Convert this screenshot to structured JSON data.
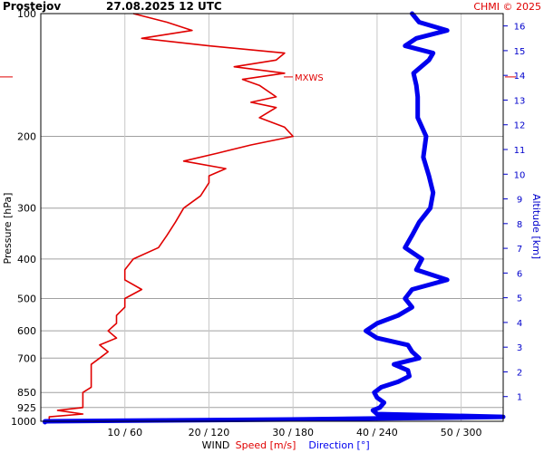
{
  "header": {
    "station": "Prostejov",
    "datetime": "27.08.2025 12 UTC",
    "copyright": "CHMI © 2025"
  },
  "colors": {
    "speed": "#e00000",
    "direction": "#0000ee",
    "grid": "#a0a0a0",
    "axis_right": "#0000cc",
    "mxws_marker": "#e00000"
  },
  "chart_data": {
    "type": "line",
    "pressure_axis": {
      "label": "Pressure [hPa]",
      "scale": "log",
      "range": [
        1000,
        100
      ],
      "ticks": [
        100,
        200,
        300,
        400,
        500,
        600,
        700,
        850,
        925,
        1000
      ]
    },
    "altitude_axis": {
      "label": "Altitude [km]",
      "range": [
        0,
        16.5
      ],
      "ticks": [
        1,
        2,
        3,
        4,
        5,
        6,
        7,
        8,
        9,
        10,
        11,
        12,
        13,
        14,
        15,
        16
      ]
    },
    "wind_axis": {
      "label": "WIND",
      "speed_label": "Speed [m/s]",
      "direction_label": "Direction [°]",
      "ticks": [
        "10 / 60",
        "20 / 120",
        "30 / 180",
        "40 / 240",
        "50 / 300"
      ],
      "speed_range": [
        0,
        55
      ],
      "direction_range": [
        0,
        330
      ]
    },
    "annotation": {
      "text": "MXWS",
      "pressure": 143
    },
    "series": [
      {
        "name": "Speed [m/s]",
        "unit": "m/s",
        "points": [
          [
            1000,
            1
          ],
          [
            975,
            1
          ],
          [
            960,
            5
          ],
          [
            940,
            2
          ],
          [
            925,
            5
          ],
          [
            900,
            5
          ],
          [
            875,
            5
          ],
          [
            850,
            5
          ],
          [
            825,
            6
          ],
          [
            800,
            6
          ],
          [
            775,
            6
          ],
          [
            750,
            6
          ],
          [
            725,
            6
          ],
          [
            700,
            7
          ],
          [
            675,
            8
          ],
          [
            650,
            7
          ],
          [
            625,
            9
          ],
          [
            600,
            8
          ],
          [
            575,
            9
          ],
          [
            550,
            9
          ],
          [
            525,
            10
          ],
          [
            500,
            10
          ],
          [
            475,
            12
          ],
          [
            450,
            10
          ],
          [
            425,
            10
          ],
          [
            400,
            11
          ],
          [
            375,
            14
          ],
          [
            350,
            15
          ],
          [
            325,
            16
          ],
          [
            300,
            17
          ],
          [
            280,
            19
          ],
          [
            260,
            20
          ],
          [
            250,
            20
          ],
          [
            240,
            22
          ],
          [
            230,
            17
          ],
          [
            220,
            21
          ],
          [
            210,
            25
          ],
          [
            200,
            30
          ],
          [
            190,
            29
          ],
          [
            180,
            26
          ],
          [
            170,
            28
          ],
          [
            165,
            25
          ],
          [
            160,
            28
          ],
          [
            150,
            26
          ],
          [
            145,
            24
          ],
          [
            140,
            29
          ],
          [
            135,
            23
          ],
          [
            130,
            28
          ],
          [
            125,
            29
          ],
          [
            120,
            20
          ],
          [
            115,
            12
          ],
          [
            110,
            18
          ],
          [
            105,
            15
          ],
          [
            100,
            11
          ]
        ]
      },
      {
        "name": "Direction [°]",
        "unit": "deg",
        "points": [
          [
            1005,
            3
          ],
          [
            1000,
            3
          ],
          [
            990,
            178
          ],
          [
            980,
            280
          ],
          [
            975,
            330
          ],
          [
            960,
            240
          ],
          [
            940,
            237
          ],
          [
            925,
            242
          ],
          [
            900,
            245
          ],
          [
            875,
            240
          ],
          [
            850,
            238
          ],
          [
            825,
            243
          ],
          [
            800,
            255
          ],
          [
            775,
            263
          ],
          [
            750,
            262
          ],
          [
            725,
            252
          ],
          [
            700,
            270
          ],
          [
            675,
            265
          ],
          [
            650,
            262
          ],
          [
            625,
            240
          ],
          [
            600,
            232
          ],
          [
            575,
            240
          ],
          [
            550,
            255
          ],
          [
            525,
            265
          ],
          [
            500,
            260
          ],
          [
            475,
            265
          ],
          [
            450,
            290
          ],
          [
            425,
            268
          ],
          [
            400,
            272
          ],
          [
            375,
            260
          ],
          [
            350,
            265
          ],
          [
            325,
            270
          ],
          [
            300,
            278
          ],
          [
            275,
            280
          ],
          [
            250,
            277
          ],
          [
            225,
            273
          ],
          [
            200,
            275
          ],
          [
            180,
            269
          ],
          [
            160,
            269
          ],
          [
            150,
            268
          ],
          [
            140,
            266
          ],
          [
            130,
            277
          ],
          [
            125,
            280
          ],
          [
            120,
            260
          ],
          [
            115,
            268
          ],
          [
            110,
            290
          ],
          [
            105,
            270
          ],
          [
            100,
            265
          ]
        ]
      }
    ],
    "grid": true
  }
}
